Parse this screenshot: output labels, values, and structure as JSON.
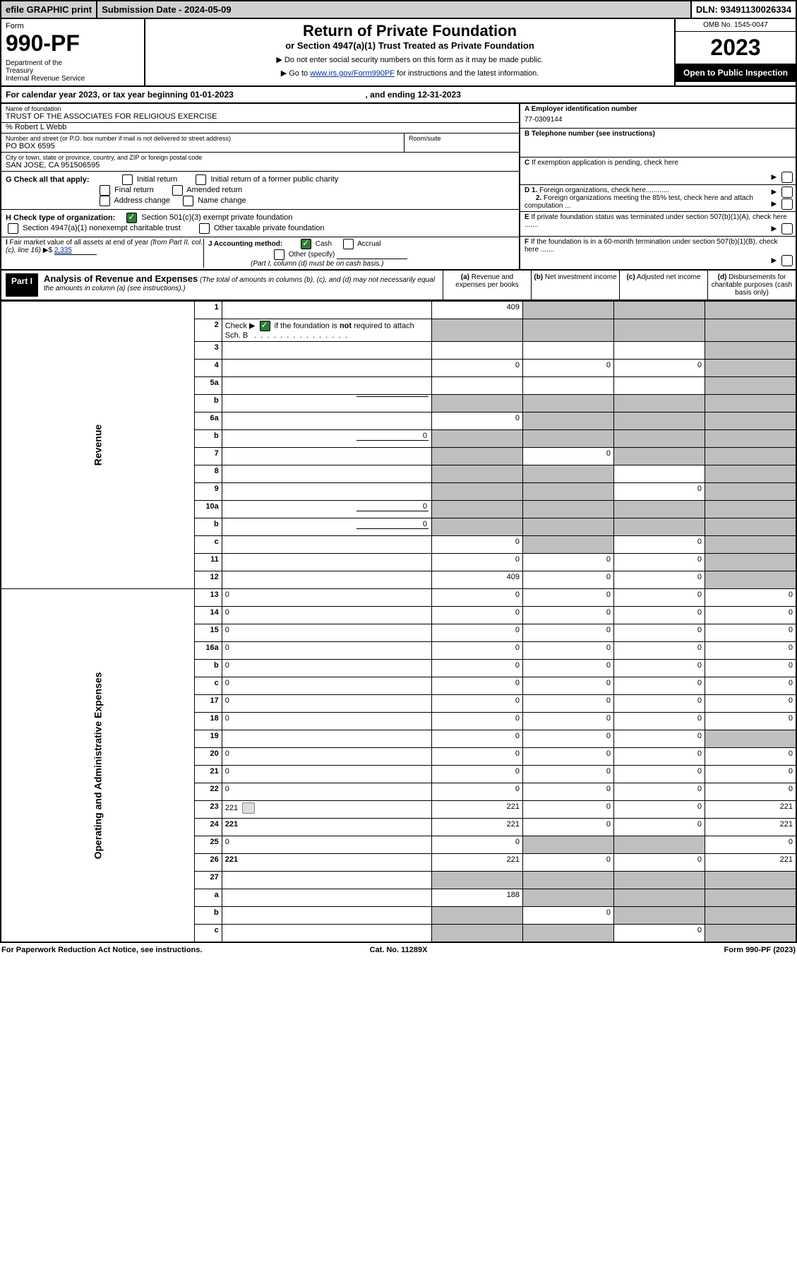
{
  "top": {
    "efile": "efile GRAPHIC print",
    "subm": "Submission Date - 2024-05-09",
    "dln": "DLN: 93491130026334"
  },
  "header": {
    "form": "Form",
    "num": "990-PF",
    "dept": "Department of the Treasury\nInternal Revenue Service",
    "title": "Return of Private Foundation",
    "sub": "or Section 4947(a)(1) Trust Treated as Private Foundation",
    "warn1": "▶ Do not enter social security numbers on this form as it may be made public.",
    "warn2_pre": "▶ Go to ",
    "warn2_link": "www.irs.gov/Form990PF",
    "warn2_post": " for instructions and the latest information.",
    "omb": "OMB No. 1545-0047",
    "year": "2023",
    "open": "Open to Public Inspection"
  },
  "cal": {
    "text": "For calendar year 2023, or tax year beginning 01-01-2023",
    "mid": ", and ending 12-31-2023"
  },
  "info": {
    "name_lbl": "Name of foundation",
    "name": "TRUST OF THE ASSOCIATES FOR RELIGIOUS EXERCISE",
    "care": "% Robert L Webb",
    "addr_lbl": "Number and street (or P.O. box number if mail is not delivered to street address)",
    "addr": "PO BOX 6595",
    "room_lbl": "Room/suite",
    "city_lbl": "City or town, state or province, country, and ZIP or foreign postal code",
    "city": "SAN JOSE, CA  951506595",
    "a_lbl": "A Employer identification number",
    "a_val": "77-0309144",
    "b_lbl": "B Telephone number (see instructions)",
    "c_lbl": "C If exemption application is pending, check here",
    "d1": "D 1. Foreign organizations, check here............",
    "d2": "2. Foreign organizations meeting the 85% test, check here and attach computation ...",
    "e": "E If private foundation status was terminated under section 507(b)(1)(A), check here .......",
    "f": "F If the foundation is in a 60-month termination under section 507(b)(1)(B), check here .......",
    "g_lbl": "G Check all that apply:",
    "g_opts": [
      "Initial return",
      "Initial return of a former public charity",
      "Final return",
      "Amended return",
      "Address change",
      "Name change"
    ],
    "h_lbl": "H Check type of organization:",
    "h_opts": [
      "Section 501(c)(3) exempt private foundation",
      "Section 4947(a)(1) nonexempt charitable trust",
      "Other taxable private foundation"
    ],
    "i_lbl": "I Fair market value of all assets at end of year (from Part II, col. (c), line 16) ▶$ ",
    "i_val": "2,335",
    "j_lbl": "J Accounting method:",
    "j_cash": "Cash",
    "j_accrual": "Accrual",
    "j_other": "Other (specify)",
    "j_note": "(Part I, column (d) must be on cash basis.)"
  },
  "part": {
    "label": "Part I",
    "title": "Analysis of Revenue and Expenses",
    "note": " (The total of amounts in columns (b), (c), and (d) may not necessarily equal the amounts in column (a) (see instructions).)",
    "cols": {
      "a": "(a) Revenue and expenses per books",
      "b": "(b) Net investment income",
      "c": "(c) Adjusted net income",
      "d": "(d) Disbursements for charitable purposes (cash basis only)"
    }
  },
  "side": {
    "rev": "Revenue",
    "exp": "Operating and Administrative Expenses"
  },
  "rows": [
    {
      "n": "1",
      "d": "",
      "a": "409",
      "b": "",
      "c": "",
      "ga": false,
      "gb": true,
      "gc": true,
      "gd": true
    },
    {
      "n": "2",
      "d": "",
      "a": "",
      "b": "",
      "c": "",
      "ga": true,
      "gb": true,
      "gc": true,
      "gd": true,
      "checked": true
    },
    {
      "n": "3",
      "d": "",
      "a": "",
      "b": "",
      "c": "",
      "ga": false,
      "gb": false,
      "gc": false,
      "gd": true
    },
    {
      "n": "4",
      "d": "",
      "a": "0",
      "b": "0",
      "c": "0",
      "ga": false,
      "gb": false,
      "gc": false,
      "gd": true
    },
    {
      "n": "5a",
      "d": "",
      "a": "",
      "b": "",
      "c": "",
      "ga": false,
      "gb": false,
      "gc": false,
      "gd": true
    },
    {
      "n": "b",
      "d": "",
      "sub": true,
      "sv": "",
      "a": "",
      "b": "",
      "c": "",
      "ga": true,
      "gb": true,
      "gc": true,
      "gd": true
    },
    {
      "n": "6a",
      "d": "",
      "a": "0",
      "b": "",
      "c": "",
      "ga": false,
      "gb": true,
      "gc": true,
      "gd": true
    },
    {
      "n": "b",
      "d": "",
      "sub": true,
      "sv": "0",
      "a": "",
      "b": "",
      "c": "",
      "ga": true,
      "gb": true,
      "gc": true,
      "gd": true
    },
    {
      "n": "7",
      "d": "",
      "a": "",
      "b": "0",
      "c": "",
      "ga": true,
      "gb": false,
      "gc": true,
      "gd": true
    },
    {
      "n": "8",
      "d": "",
      "a": "",
      "b": "",
      "c": "",
      "ga": true,
      "gb": true,
      "gc": false,
      "gd": true
    },
    {
      "n": "9",
      "d": "",
      "a": "",
      "b": "",
      "c": "0",
      "ga": true,
      "gb": true,
      "gc": false,
      "gd": true
    },
    {
      "n": "10a",
      "d": "",
      "sub": true,
      "sv": "0",
      "a": "",
      "b": "",
      "c": "",
      "ga": true,
      "gb": true,
      "gc": true,
      "gd": true
    },
    {
      "n": "b",
      "d": "",
      "sub": true,
      "sv": "0",
      "a": "",
      "b": "",
      "c": "",
      "ga": true,
      "gb": true,
      "gc": true,
      "gd": true
    },
    {
      "n": "c",
      "d": "",
      "a": "0",
      "b": "",
      "c": "0",
      "ga": false,
      "gb": true,
      "gc": false,
      "gd": true
    },
    {
      "n": "11",
      "d": "",
      "a": "0",
      "b": "0",
      "c": "0",
      "ga": false,
      "gb": false,
      "gc": false,
      "gd": true
    },
    {
      "n": "12",
      "d": "",
      "bold": true,
      "a": "409",
      "b": "0",
      "c": "0",
      "ga": false,
      "gb": false,
      "gc": false,
      "gd": true
    },
    {
      "n": "13",
      "d": "0",
      "a": "0",
      "b": "0",
      "c": "0"
    },
    {
      "n": "14",
      "d": "0",
      "a": "0",
      "b": "0",
      "c": "0"
    },
    {
      "n": "15",
      "d": "0",
      "a": "0",
      "b": "0",
      "c": "0"
    },
    {
      "n": "16a",
      "d": "0",
      "a": "0",
      "b": "0",
      "c": "0"
    },
    {
      "n": "b",
      "d": "0",
      "a": "0",
      "b": "0",
      "c": "0"
    },
    {
      "n": "c",
      "d": "0",
      "a": "0",
      "b": "0",
      "c": "0"
    },
    {
      "n": "17",
      "d": "0",
      "a": "0",
      "b": "0",
      "c": "0"
    },
    {
      "n": "18",
      "d": "0",
      "a": "0",
      "b": "0",
      "c": "0"
    },
    {
      "n": "19",
      "d": "",
      "a": "0",
      "b": "0",
      "c": "0",
      "gd": true
    },
    {
      "n": "20",
      "d": "0",
      "a": "0",
      "b": "0",
      "c": "0"
    },
    {
      "n": "21",
      "d": "0",
      "a": "0",
      "b": "0",
      "c": "0"
    },
    {
      "n": "22",
      "d": "0",
      "a": "0",
      "b": "0",
      "c": "0"
    },
    {
      "n": "23",
      "d": "221",
      "icon": true,
      "a": "221",
      "b": "0",
      "c": "0"
    },
    {
      "n": "24",
      "d": "221",
      "bold": true,
      "a": "221",
      "b": "0",
      "c": "0"
    },
    {
      "n": "25",
      "d": "0",
      "a": "0",
      "b": "",
      "c": "",
      "gb": true,
      "gc": true
    },
    {
      "n": "26",
      "d": "221",
      "bold": true,
      "a": "221",
      "b": "0",
      "c": "0"
    },
    {
      "n": "27",
      "d": "",
      "a": "",
      "b": "",
      "c": "",
      "ga": true,
      "gb": true,
      "gc": true,
      "gd": true
    },
    {
      "n": "a",
      "d": "",
      "bold": true,
      "a": "188",
      "b": "",
      "c": "",
      "gb": true,
      "gc": true,
      "gd": true
    },
    {
      "n": "b",
      "d": "",
      "bold": true,
      "a": "",
      "b": "0",
      "c": "",
      "ga": true,
      "gc": true,
      "gd": true
    },
    {
      "n": "c",
      "d": "",
      "bold": true,
      "a": "",
      "b": "",
      "c": "0",
      "ga": true,
      "gb": true,
      "gd": true
    }
  ],
  "footer": {
    "l": "For Paperwork Reduction Act Notice, see instructions.",
    "m": "Cat. No. 11289X",
    "r": "Form 990-PF (2023)"
  },
  "colors": {
    "header_grey": "#d0d0d0",
    "cell_grey": "#bfbfbf",
    "link": "#003399",
    "check_green": "#2e7d32"
  }
}
